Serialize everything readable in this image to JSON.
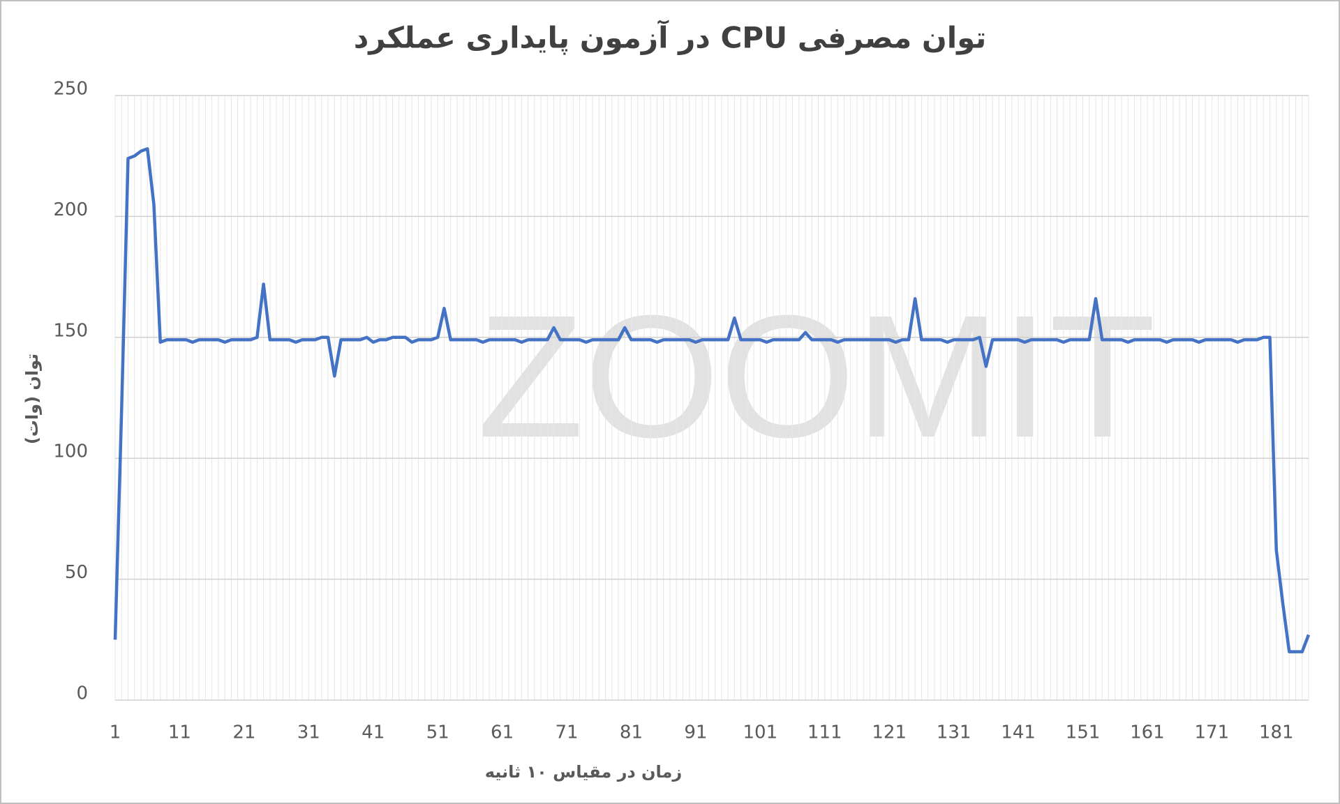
{
  "chart_data": {
    "type": "line",
    "title": "توان مصرفی CPU در آزمون پایداری عملکرد",
    "x_label": "زمان در مقیاس ۱۰ ثانیه",
    "y_label": "توان (وات)",
    "watermark": "ZOOMIT",
    "x": [
      1,
      2,
      3,
      4,
      5,
      6,
      7,
      8,
      9,
      10,
      11,
      12,
      13,
      14,
      15,
      16,
      17,
      18,
      19,
      20,
      21,
      22,
      23,
      24,
      25,
      26,
      27,
      28,
      29,
      30,
      31,
      32,
      33,
      34,
      35,
      36,
      37,
      38,
      39,
      40,
      41,
      42,
      43,
      44,
      45,
      46,
      47,
      48,
      49,
      50,
      51,
      52,
      53,
      54,
      55,
      56,
      57,
      58,
      59,
      60,
      61,
      62,
      63,
      64,
      65,
      66,
      67,
      68,
      69,
      70,
      71,
      72,
      73,
      74,
      75,
      76,
      77,
      78,
      79,
      80,
      81,
      82,
      83,
      84,
      85,
      86,
      87,
      88,
      89,
      90,
      91,
      92,
      93,
      94,
      95,
      96,
      97,
      98,
      99,
      100,
      101,
      102,
      103,
      104,
      105,
      106,
      107,
      108,
      109,
      110,
      111,
      112,
      113,
      114,
      115,
      116,
      117,
      118,
      119,
      120,
      121,
      122,
      123,
      124,
      125,
      126,
      127,
      128,
      129,
      130,
      131,
      132,
      133,
      134,
      135,
      136,
      137,
      138,
      139,
      140,
      141,
      142,
      143,
      144,
      145,
      146,
      147,
      148,
      149,
      150,
      151,
      152,
      153,
      154,
      155,
      156,
      157,
      158,
      159,
      160,
      161,
      162,
      163,
      164,
      165,
      166,
      167,
      168,
      169,
      170,
      171,
      172,
      173,
      174,
      175,
      176,
      177,
      178,
      179,
      180,
      181,
      182,
      183,
      184,
      185,
      186
    ],
    "series": [
      {
        "color": "#4472c4",
        "values": [
          25,
          120,
          224,
          225,
          227,
          228,
          205,
          148,
          149,
          149,
          149,
          149,
          148,
          149,
          149,
          149,
          149,
          148,
          149,
          149,
          149,
          149,
          150,
          172,
          149,
          149,
          149,
          149,
          148,
          149,
          149,
          149,
          150,
          150,
          134,
          149,
          149,
          149,
          149,
          150,
          148,
          149,
          149,
          150,
          150,
          150,
          148,
          149,
          149,
          149,
          150,
          162,
          149,
          149,
          149,
          149,
          149,
          148,
          149,
          149,
          149,
          149,
          149,
          148,
          149,
          149,
          149,
          149,
          154,
          149,
          149,
          149,
          149,
          148,
          149,
          149,
          149,
          149,
          149,
          154,
          149,
          149,
          149,
          149,
          148,
          149,
          149,
          149,
          149,
          149,
          148,
          149,
          149,
          149,
          149,
          149,
          158,
          149,
          149,
          149,
          149,
          148,
          149,
          149,
          149,
          149,
          149,
          152,
          149,
          149,
          149,
          149,
          148,
          149,
          149,
          149,
          149,
          149,
          149,
          149,
          149,
          148,
          149,
          149,
          166,
          149,
          149,
          149,
          149,
          148,
          149,
          149,
          149,
          149,
          150,
          138,
          149,
          149,
          149,
          149,
          149,
          148,
          149,
          149,
          149,
          149,
          149,
          148,
          149,
          149,
          149,
          149,
          166,
          149,
          149,
          149,
          149,
          148,
          149,
          149,
          149,
          149,
          149,
          148,
          149,
          149,
          149,
          149,
          148,
          149,
          149,
          149,
          149,
          149,
          148,
          149,
          149,
          149,
          150,
          150,
          62,
          40,
          20,
          20,
          20,
          27
        ]
      }
    ],
    "xlim": [
      1,
      186
    ],
    "xticks": [
      1,
      11,
      21,
      31,
      41,
      51,
      61,
      71,
      81,
      91,
      101,
      111,
      121,
      131,
      141,
      151,
      161,
      171,
      181
    ],
    "ylim": [
      0,
      250
    ],
    "yticks": [
      0,
      50,
      100,
      150,
      200,
      250
    ],
    "grid": true
  }
}
